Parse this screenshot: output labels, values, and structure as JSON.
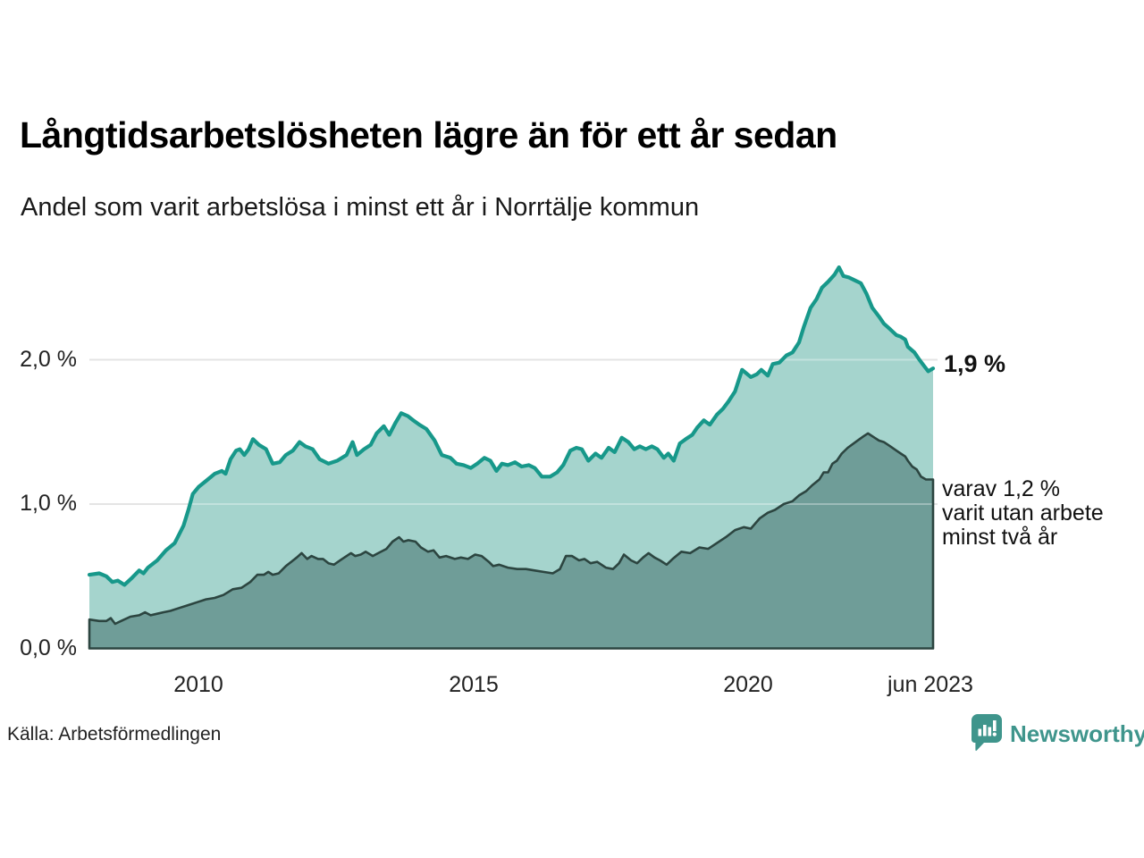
{
  "header": {
    "title": "Långtidsarbetslösheten lägre än för ett år sedan",
    "subtitle": "Andel som varit arbetslösa i minst ett år i Norrtälje kommun"
  },
  "footer": {
    "source": "Källa: Arbetsförmedlingen",
    "brand": "Newsworthy"
  },
  "annotations": {
    "latest_total": "1,9 %",
    "two_year_line1": "varav 1,2 %",
    "two_year_line2": "varit utan arbete",
    "two_year_line3": "minst två år"
  },
  "colors": {
    "teal_line": "#17988a",
    "light_fill": "#a5d4cd",
    "dark_fill": "#6f9d98",
    "dark_outline": "#2c4540",
    "grid": "#d7d7d7",
    "grid_over_fill": "rgba(255,255,255,0.32)",
    "brand_teal": "#3f958c"
  },
  "chart_data": {
    "type": "area",
    "title": "Långtidsarbetslösheten lägre än för ett år sedan",
    "subtitle": "Andel som varit arbetslösa i minst ett år i Norrtälje kommun",
    "unit": "%",
    "xlim": [
      2008.0,
      2023.42
    ],
    "ylim": [
      0,
      2.8
    ],
    "grid": "horizontal",
    "legend_position": "annotated-right",
    "x_ticks": [
      {
        "label": "2010",
        "year": 2010
      },
      {
        "label": "2015",
        "year": 2015
      },
      {
        "label": "2020",
        "year": 2020
      },
      {
        "label": "jun 2023",
        "year": 2023.42
      }
    ],
    "y_ticks": [
      {
        "label": "0,0 %",
        "value": 0
      },
      {
        "label": "1,0 %",
        "value": 1
      },
      {
        "label": "2,0 %",
        "value": 2
      }
    ],
    "series": [
      {
        "name": "Andel som varit arbetslösa i minst ett år",
        "end_label": "1,9 %",
        "values": [
          [
            2008.0,
            0.51
          ],
          [
            2008.18,
            0.52
          ],
          [
            2008.31,
            0.5
          ],
          [
            2008.42,
            0.46
          ],
          [
            2008.52,
            0.47
          ],
          [
            2008.64,
            0.44
          ],
          [
            2008.78,
            0.49
          ],
          [
            2008.91,
            0.54
          ],
          [
            2008.99,
            0.52
          ],
          [
            2009.07,
            0.56
          ],
          [
            2009.24,
            0.61
          ],
          [
            2009.4,
            0.68
          ],
          [
            2009.56,
            0.73
          ],
          [
            2009.64,
            0.79
          ],
          [
            2009.72,
            0.85
          ],
          [
            2009.81,
            0.96
          ],
          [
            2009.89,
            1.07
          ],
          [
            2010.0,
            1.12
          ],
          [
            2010.13,
            1.16
          ],
          [
            2010.29,
            1.21
          ],
          [
            2010.42,
            1.23
          ],
          [
            2010.49,
            1.21
          ],
          [
            2010.58,
            1.31
          ],
          [
            2010.68,
            1.37
          ],
          [
            2010.75,
            1.38
          ],
          [
            2010.83,
            1.34
          ],
          [
            2010.91,
            1.38
          ],
          [
            2010.99,
            1.45
          ],
          [
            2011.1,
            1.41
          ],
          [
            2011.23,
            1.38
          ],
          [
            2011.35,
            1.28
          ],
          [
            2011.48,
            1.29
          ],
          [
            2011.59,
            1.34
          ],
          [
            2011.72,
            1.37
          ],
          [
            2011.84,
            1.43
          ],
          [
            2011.95,
            1.4
          ],
          [
            2012.08,
            1.38
          ],
          [
            2012.21,
            1.31
          ],
          [
            2012.37,
            1.28
          ],
          [
            2012.53,
            1.3
          ],
          [
            2012.7,
            1.34
          ],
          [
            2012.81,
            1.43
          ],
          [
            2012.89,
            1.34
          ],
          [
            2013.02,
            1.38
          ],
          [
            2013.14,
            1.41
          ],
          [
            2013.25,
            1.49
          ],
          [
            2013.38,
            1.54
          ],
          [
            2013.48,
            1.48
          ],
          [
            2013.59,
            1.56
          ],
          [
            2013.7,
            1.63
          ],
          [
            2013.82,
            1.61
          ],
          [
            2013.92,
            1.58
          ],
          [
            2014.03,
            1.55
          ],
          [
            2014.16,
            1.52
          ],
          [
            2014.31,
            1.44
          ],
          [
            2014.44,
            1.34
          ],
          [
            2014.6,
            1.32
          ],
          [
            2014.71,
            1.28
          ],
          [
            2014.84,
            1.27
          ],
          [
            2014.97,
            1.25
          ],
          [
            2015.09,
            1.28
          ],
          [
            2015.22,
            1.32
          ],
          [
            2015.33,
            1.3
          ],
          [
            2015.44,
            1.23
          ],
          [
            2015.54,
            1.28
          ],
          [
            2015.65,
            1.27
          ],
          [
            2015.78,
            1.29
          ],
          [
            2015.9,
            1.26
          ],
          [
            2016.03,
            1.27
          ],
          [
            2016.14,
            1.25
          ],
          [
            2016.27,
            1.19
          ],
          [
            2016.42,
            1.19
          ],
          [
            2016.55,
            1.22
          ],
          [
            2016.66,
            1.27
          ],
          [
            2016.79,
            1.37
          ],
          [
            2016.9,
            1.39
          ],
          [
            2017.0,
            1.38
          ],
          [
            2017.12,
            1.3
          ],
          [
            2017.25,
            1.35
          ],
          [
            2017.36,
            1.32
          ],
          [
            2017.49,
            1.39
          ],
          [
            2017.6,
            1.36
          ],
          [
            2017.73,
            1.46
          ],
          [
            2017.85,
            1.43
          ],
          [
            2017.96,
            1.38
          ],
          [
            2018.06,
            1.4
          ],
          [
            2018.17,
            1.38
          ],
          [
            2018.28,
            1.4
          ],
          [
            2018.38,
            1.38
          ],
          [
            2018.5,
            1.32
          ],
          [
            2018.58,
            1.35
          ],
          [
            2018.68,
            1.3
          ],
          [
            2018.79,
            1.42
          ],
          [
            2018.9,
            1.45
          ],
          [
            2019.02,
            1.48
          ],
          [
            2019.11,
            1.53
          ],
          [
            2019.23,
            1.58
          ],
          [
            2019.34,
            1.55
          ],
          [
            2019.47,
            1.62
          ],
          [
            2019.58,
            1.66
          ],
          [
            2019.68,
            1.71
          ],
          [
            2019.8,
            1.78
          ],
          [
            2019.93,
            1.93
          ],
          [
            2020.09,
            1.88
          ],
          [
            2020.2,
            1.9
          ],
          [
            2020.28,
            1.93
          ],
          [
            2020.4,
            1.89
          ],
          [
            2020.49,
            1.97
          ],
          [
            2020.61,
            1.98
          ],
          [
            2020.74,
            2.03
          ],
          [
            2020.85,
            2.05
          ],
          [
            2020.97,
            2.12
          ],
          [
            2021.06,
            2.23
          ],
          [
            2021.18,
            2.36
          ],
          [
            2021.29,
            2.42
          ],
          [
            2021.39,
            2.5
          ],
          [
            2021.5,
            2.54
          ],
          [
            2021.62,
            2.59
          ],
          [
            2021.7,
            2.64
          ],
          [
            2021.78,
            2.58
          ],
          [
            2021.88,
            2.57
          ],
          [
            2021.99,
            2.55
          ],
          [
            2022.1,
            2.53
          ],
          [
            2022.2,
            2.46
          ],
          [
            2022.31,
            2.36
          ],
          [
            2022.43,
            2.3
          ],
          [
            2022.52,
            2.25
          ],
          [
            2022.64,
            2.21
          ],
          [
            2022.75,
            2.17
          ],
          [
            2022.83,
            2.16
          ],
          [
            2022.91,
            2.14
          ],
          [
            2022.96,
            2.09
          ],
          [
            2023.08,
            2.05
          ],
          [
            2023.17,
            2.0
          ],
          [
            2023.25,
            1.96
          ],
          [
            2023.33,
            1.92
          ],
          [
            2023.42,
            1.94
          ]
        ]
      },
      {
        "name": "varav utan arbete minst två år",
        "end_label": "varav 1,2 % varit utan arbete minst två år",
        "values": [
          [
            2008.0,
            0.2
          ],
          [
            2008.18,
            0.19
          ],
          [
            2008.31,
            0.19
          ],
          [
            2008.39,
            0.21
          ],
          [
            2008.47,
            0.17
          ],
          [
            2008.58,
            0.19
          ],
          [
            2008.75,
            0.22
          ],
          [
            2008.91,
            0.23
          ],
          [
            2009.02,
            0.25
          ],
          [
            2009.12,
            0.23
          ],
          [
            2009.24,
            0.24
          ],
          [
            2009.35,
            0.25
          ],
          [
            2009.48,
            0.26
          ],
          [
            2009.64,
            0.28
          ],
          [
            2009.81,
            0.3
          ],
          [
            2009.97,
            0.32
          ],
          [
            2010.13,
            0.34
          ],
          [
            2010.29,
            0.35
          ],
          [
            2010.45,
            0.37
          ],
          [
            2010.62,
            0.41
          ],
          [
            2010.78,
            0.42
          ],
          [
            2010.94,
            0.46
          ],
          [
            2011.07,
            0.51
          ],
          [
            2011.19,
            0.51
          ],
          [
            2011.27,
            0.53
          ],
          [
            2011.35,
            0.51
          ],
          [
            2011.46,
            0.52
          ],
          [
            2011.59,
            0.57
          ],
          [
            2011.69,
            0.6
          ],
          [
            2011.79,
            0.63
          ],
          [
            2011.88,
            0.66
          ],
          [
            2011.98,
            0.62
          ],
          [
            2012.06,
            0.64
          ],
          [
            2012.18,
            0.62
          ],
          [
            2012.27,
            0.62
          ],
          [
            2012.37,
            0.59
          ],
          [
            2012.47,
            0.58
          ],
          [
            2012.62,
            0.62
          ],
          [
            2012.78,
            0.66
          ],
          [
            2012.86,
            0.64
          ],
          [
            2012.96,
            0.65
          ],
          [
            2013.05,
            0.67
          ],
          [
            2013.18,
            0.64
          ],
          [
            2013.28,
            0.66
          ],
          [
            2013.43,
            0.69
          ],
          [
            2013.54,
            0.74
          ],
          [
            2013.66,
            0.77
          ],
          [
            2013.74,
            0.74
          ],
          [
            2013.83,
            0.75
          ],
          [
            2013.96,
            0.74
          ],
          [
            2014.06,
            0.7
          ],
          [
            2014.19,
            0.67
          ],
          [
            2014.29,
            0.68
          ],
          [
            2014.4,
            0.63
          ],
          [
            2014.52,
            0.64
          ],
          [
            2014.68,
            0.62
          ],
          [
            2014.79,
            0.63
          ],
          [
            2014.92,
            0.62
          ],
          [
            2015.05,
            0.65
          ],
          [
            2015.17,
            0.64
          ],
          [
            2015.3,
            0.6
          ],
          [
            2015.38,
            0.57
          ],
          [
            2015.49,
            0.58
          ],
          [
            2015.65,
            0.56
          ],
          [
            2015.82,
            0.55
          ],
          [
            2015.98,
            0.55
          ],
          [
            2016.14,
            0.54
          ],
          [
            2016.3,
            0.53
          ],
          [
            2016.47,
            0.52
          ],
          [
            2016.6,
            0.55
          ],
          [
            2016.71,
            0.64
          ],
          [
            2016.82,
            0.64
          ],
          [
            2016.95,
            0.61
          ],
          [
            2017.05,
            0.62
          ],
          [
            2017.16,
            0.59
          ],
          [
            2017.28,
            0.6
          ],
          [
            2017.44,
            0.56
          ],
          [
            2017.57,
            0.55
          ],
          [
            2017.68,
            0.59
          ],
          [
            2017.77,
            0.65
          ],
          [
            2017.9,
            0.61
          ],
          [
            2018.01,
            0.59
          ],
          [
            2018.12,
            0.63
          ],
          [
            2018.22,
            0.66
          ],
          [
            2018.33,
            0.63
          ],
          [
            2018.43,
            0.61
          ],
          [
            2018.55,
            0.58
          ],
          [
            2018.66,
            0.62
          ],
          [
            2018.82,
            0.67
          ],
          [
            2018.98,
            0.66
          ],
          [
            2019.15,
            0.7
          ],
          [
            2019.31,
            0.69
          ],
          [
            2019.47,
            0.73
          ],
          [
            2019.63,
            0.77
          ],
          [
            2019.8,
            0.82
          ],
          [
            2019.96,
            0.84
          ],
          [
            2020.09,
            0.83
          ],
          [
            2020.25,
            0.9
          ],
          [
            2020.4,
            0.94
          ],
          [
            2020.53,
            0.96
          ],
          [
            2020.69,
            1.0
          ],
          [
            2020.85,
            1.02
          ],
          [
            2020.97,
            1.06
          ],
          [
            2021.1,
            1.09
          ],
          [
            2021.21,
            1.13
          ],
          [
            2021.34,
            1.17
          ],
          [
            2021.42,
            1.22
          ],
          [
            2021.5,
            1.22
          ],
          [
            2021.58,
            1.28
          ],
          [
            2021.66,
            1.3
          ],
          [
            2021.75,
            1.35
          ],
          [
            2021.86,
            1.39
          ],
          [
            2022.04,
            1.44
          ],
          [
            2022.15,
            1.47
          ],
          [
            2022.23,
            1.49
          ],
          [
            2022.35,
            1.46
          ],
          [
            2022.43,
            1.44
          ],
          [
            2022.52,
            1.43
          ],
          [
            2022.64,
            1.4
          ],
          [
            2022.75,
            1.37
          ],
          [
            2022.83,
            1.35
          ],
          [
            2022.91,
            1.33
          ],
          [
            2022.96,
            1.3
          ],
          [
            2023.04,
            1.26
          ],
          [
            2023.12,
            1.24
          ],
          [
            2023.2,
            1.19
          ],
          [
            2023.29,
            1.17
          ],
          [
            2023.42,
            1.17
          ]
        ]
      }
    ]
  }
}
